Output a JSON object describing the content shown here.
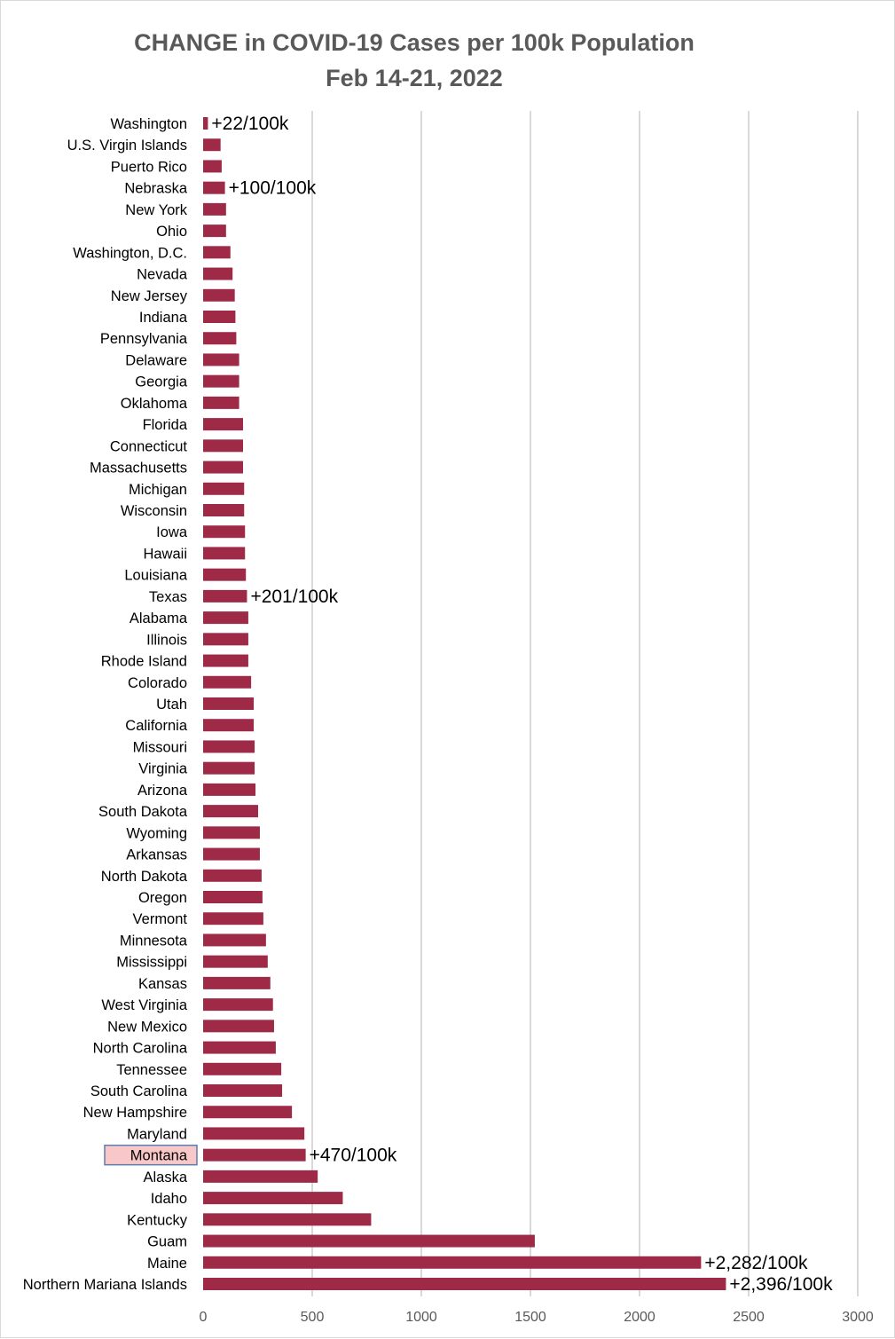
{
  "chart_data": {
    "type": "bar",
    "orientation": "horizontal",
    "title": "CHANGE in COVID-19 Cases per 100k Population",
    "subtitle": "Feb 14-21, 2022",
    "xlabel": "",
    "ylabel": "",
    "xlim": [
      0,
      3000
    ],
    "xticks": [
      0,
      500,
      1000,
      1500,
      2000,
      2500,
      3000
    ],
    "grid": true,
    "bar_color": "#9e2a47",
    "highlight": {
      "category": "Montana",
      "fill": "#f8c8c8",
      "border": "#5b7db1"
    },
    "categories": [
      "Washington",
      "U.S. Virgin Islands",
      "Puerto Rico",
      "Nebraska",
      "New York",
      "Ohio",
      "Washington, D.C.",
      "Nevada",
      "New Jersey",
      "Indiana",
      "Pennsylvania",
      "Delaware",
      "Georgia",
      "Oklahoma",
      "Florida",
      "Connecticut",
      "Massachusetts",
      "Michigan",
      "Wisconsin",
      "Iowa",
      "Hawaii",
      "Louisiana",
      "Texas",
      "Alabama",
      "Illinois",
      "Rhode Island",
      "Colorado",
      "Utah",
      "California",
      "Missouri",
      "Virginia",
      "Arizona",
      "South Dakota",
      "Wyoming",
      "Arkansas",
      "North Dakota",
      "Oregon",
      "Vermont",
      "Minnesota",
      "Mississippi",
      "Kansas",
      "West Virginia",
      "New Mexico",
      "North Carolina",
      "Tennessee",
      "South Carolina",
      "New Hampshire",
      "Maryland",
      "Montana",
      "Alaska",
      "Idaho",
      "Kentucky",
      "Guam",
      "Maine",
      "Northern Mariana Islands"
    ],
    "values": [
      22,
      80,
      85,
      100,
      105,
      105,
      125,
      135,
      145,
      148,
      152,
      165,
      165,
      165,
      183,
      183,
      183,
      188,
      188,
      192,
      192,
      196,
      201,
      207,
      207,
      207,
      220,
      232,
      232,
      236,
      236,
      240,
      252,
      260,
      260,
      268,
      272,
      276,
      288,
      296,
      308,
      320,
      325,
      333,
      358,
      362,
      407,
      464,
      470,
      525,
      640,
      770,
      1520,
      2282,
      2396
    ],
    "data_labels": [
      {
        "category": "Washington",
        "text": "+22/100k"
      },
      {
        "category": "Nebraska",
        "text": "+100/100k"
      },
      {
        "category": "Texas",
        "text": "+201/100k"
      },
      {
        "category": "Montana",
        "text": "+470/100k"
      },
      {
        "category": "Maine",
        "text": "+2,282/100k"
      },
      {
        "category": "Northern Mariana Islands",
        "text": "+2,396/100k"
      }
    ]
  }
}
